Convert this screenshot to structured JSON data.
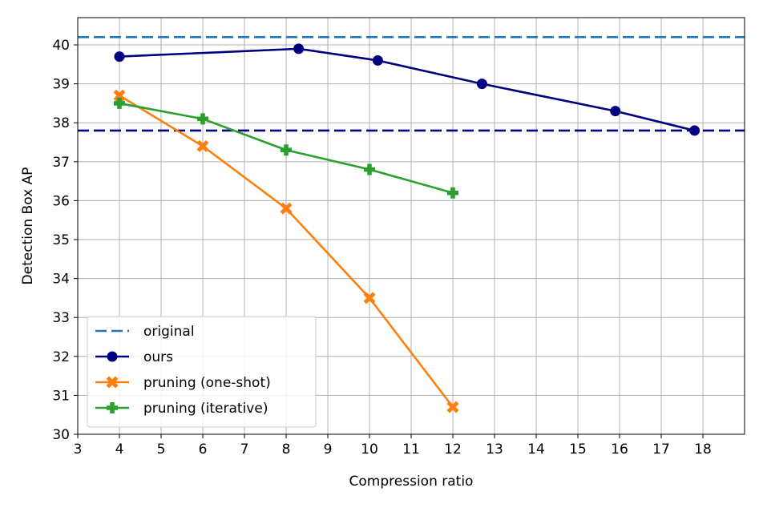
{
  "chart_data": {
    "type": "line",
    "xlabel": "Compression ratio",
    "ylabel": "Detection Box AP",
    "xlim": [
      3,
      19
    ],
    "ylim": [
      30,
      40.7
    ],
    "xticks": [
      3,
      4,
      5,
      6,
      7,
      8,
      9,
      10,
      11,
      12,
      13,
      14,
      15,
      16,
      17,
      18
    ],
    "yticks": [
      30,
      31,
      32,
      33,
      34,
      35,
      36,
      37,
      38,
      39,
      40
    ],
    "grid": true,
    "legend_position": "lower-left",
    "reference_lines": [
      {
        "name": "original",
        "y": 40.2,
        "color": "#1f77b4",
        "style": "dashed",
        "in_legend": true
      },
      {
        "name": "",
        "y": 37.8,
        "color": "#000080",
        "style": "dashed",
        "in_legend": false
      }
    ],
    "series": [
      {
        "name": "ours",
        "color": "#000080",
        "marker": "circle",
        "x": [
          4.0,
          8.3,
          10.2,
          12.7,
          15.9,
          17.8
        ],
        "y": [
          39.7,
          39.9,
          39.6,
          39.0,
          38.3,
          37.8
        ]
      },
      {
        "name": "pruning (one-shot)",
        "color": "#ff7f0e",
        "marker": "x",
        "x": [
          4,
          6,
          8,
          10,
          12
        ],
        "y": [
          38.7,
          37.4,
          35.8,
          33.5,
          30.7
        ]
      },
      {
        "name": "pruning (iterative)",
        "color": "#2ca02c",
        "marker": "plus",
        "x": [
          4,
          6,
          8,
          10,
          12
        ],
        "y": [
          38.5,
          38.1,
          37.3,
          36.8,
          36.2
        ]
      }
    ]
  }
}
